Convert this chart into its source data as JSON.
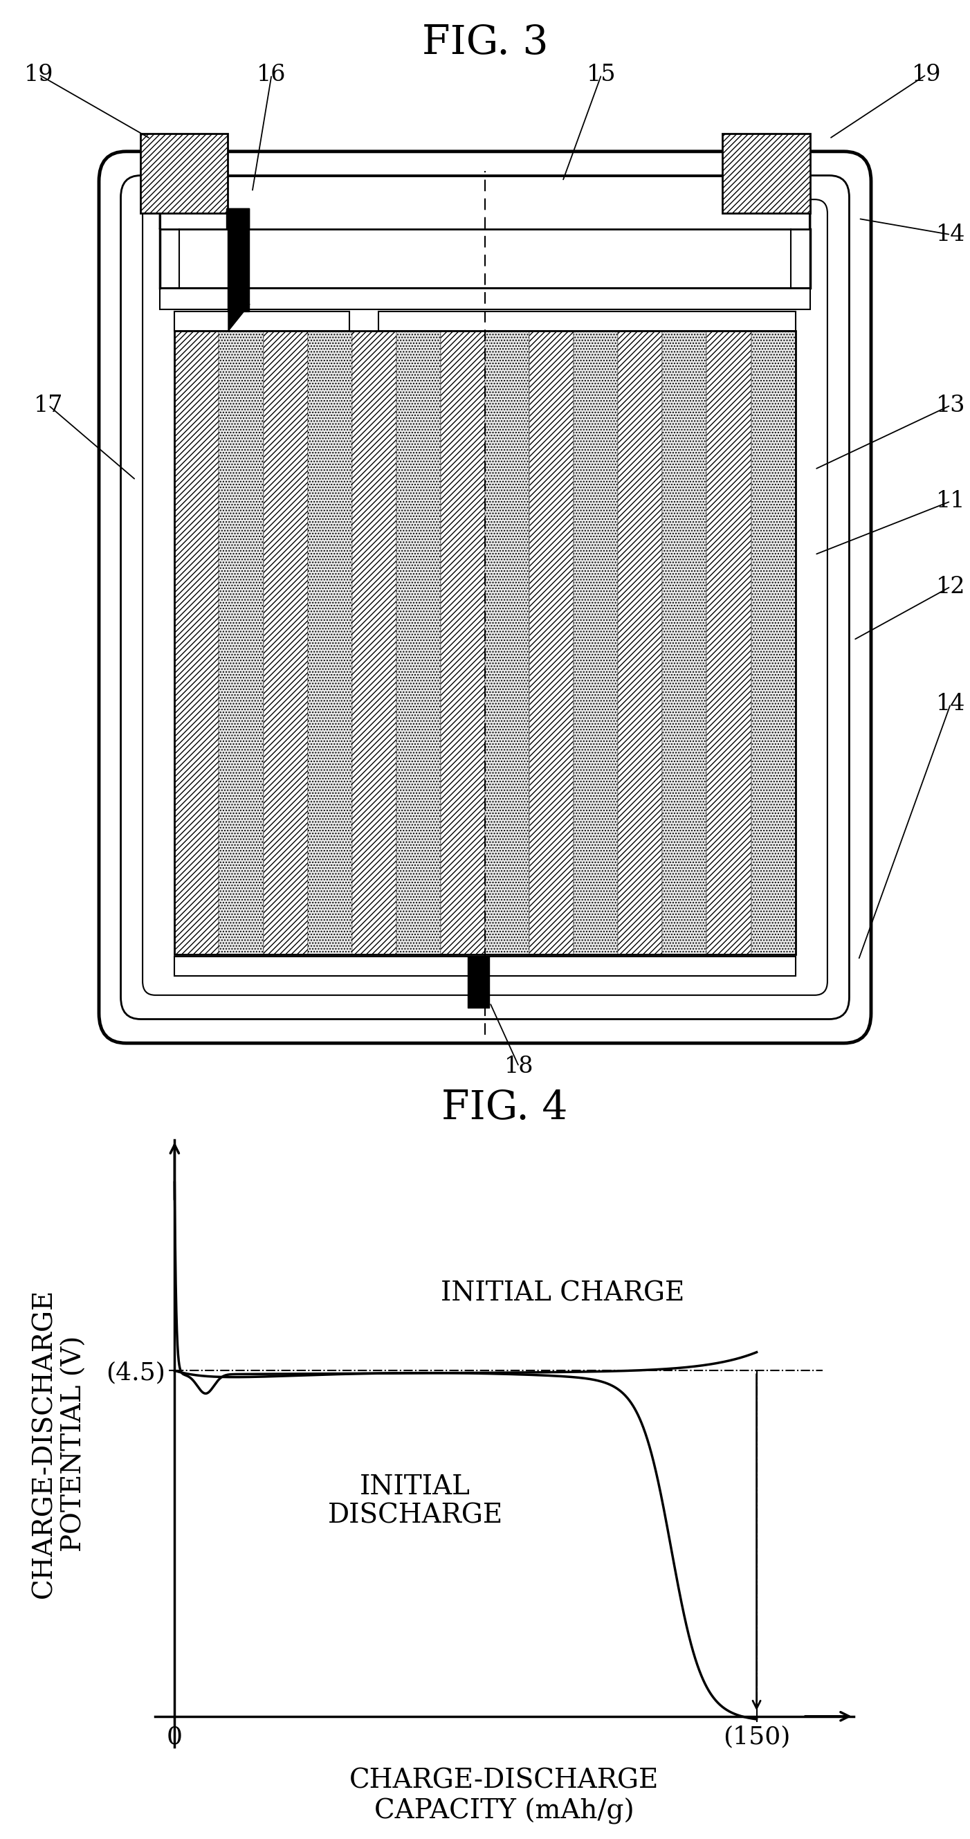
{
  "fig3_title": "FIG. 3",
  "fig4_title": "FIG. 4",
  "fig4_xlabel": "CHARGE-DISCHARGE\nCAPACITY (mAh/g)",
  "fig4_ylabel": "CHARGE-DISCHARGE\nPOTENTIAL (V)",
  "fig4_y45_label": "(4.5)",
  "fig4_x150_label": "(150)",
  "fig4_label_charge": "INITIAL CHARGE",
  "fig4_label_discharge": "INITIAL\nDISCHARGE",
  "bg_color": "#ffffff",
  "n_electrode_cols": 14,
  "hatch_electrode": "////",
  "hatch_terminal": "////",
  "separator_color": "#e8e8e8",
  "electrode_color": "#ffffff"
}
